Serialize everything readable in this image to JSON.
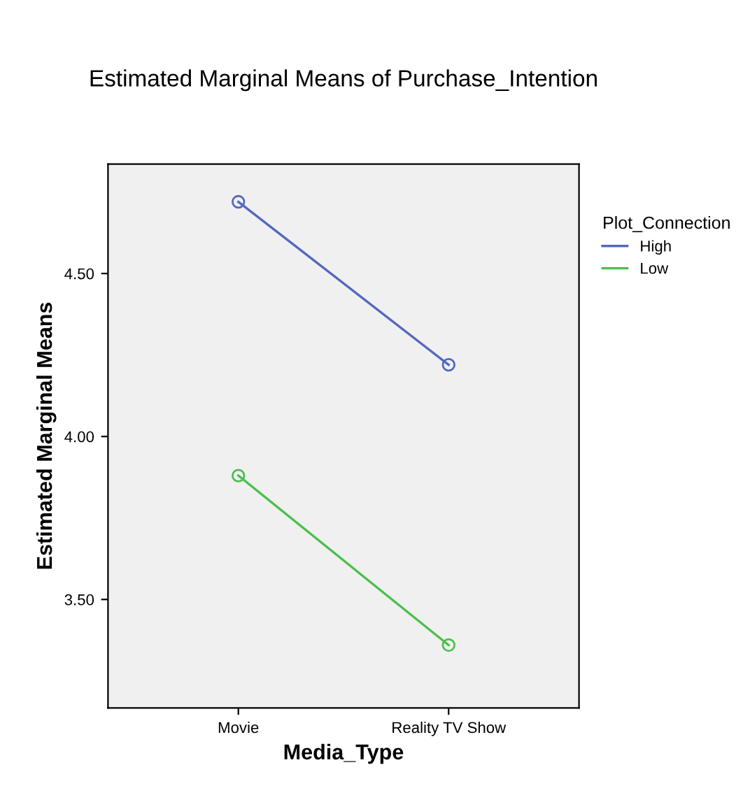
{
  "chart_data": {
    "type": "line",
    "title": "Estimated Marginal Means of Purchase_Intention",
    "xlabel": "Media_Type",
    "ylabel": "Estimated Marginal Means",
    "legend_title": "Plot_Connection",
    "categories": [
      "Movie",
      "Reality TV Show"
    ],
    "series": [
      {
        "name": "High",
        "color": "#5468c0",
        "values": [
          4.72,
          4.22
        ]
      },
      {
        "name": "Low",
        "color": "#4cbf4c",
        "values": [
          3.88,
          3.36
        ]
      }
    ],
    "ylim": [
      3.167,
      4.836
    ],
    "yticks": [
      {
        "value": 3.5,
        "label": "3.50"
      },
      {
        "value": 4.0,
        "label": "4.00"
      },
      {
        "value": 4.5,
        "label": "4.50"
      }
    ],
    "marker": "circle",
    "line_style": "solid",
    "legend": "top right",
    "grid": false
  }
}
